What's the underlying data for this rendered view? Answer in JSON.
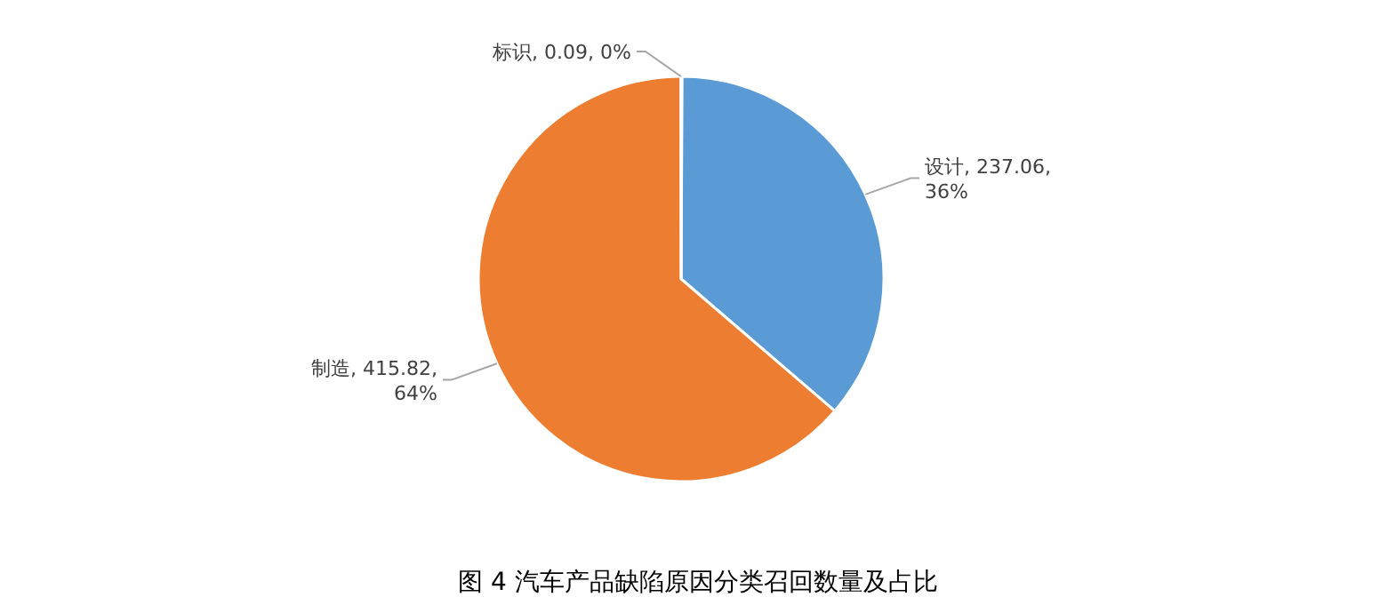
{
  "chart_data": {
    "type": "pie",
    "categories": [
      "设计",
      "制造",
      "标识"
    ],
    "values": [
      237.06,
      415.82,
      0.09
    ],
    "value_labels": [
      "237.06, 36%",
      "415.82, 64%",
      "0.09, 0%"
    ],
    "colors": [
      "#5b9bd5",
      "#ed7d31",
      "#a5a5a5"
    ],
    "legend": false,
    "annotations": [
      "图 4 汽车产品缺陷原因分类召回数量及占比"
    ]
  }
}
